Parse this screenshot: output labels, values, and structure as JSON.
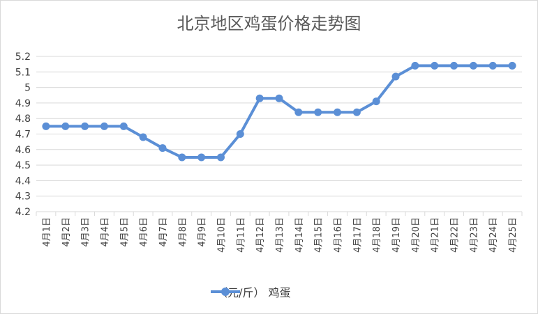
{
  "chart_data": {
    "type": "line",
    "title": "北京地区鸡蛋价格走势图",
    "categories": [
      "4月1日",
      "4月2日",
      "4月3日",
      "4月4日",
      "4月5日",
      "4月6日",
      "4月7日",
      "4月8日",
      "4月9日",
      "4月10日",
      "4月11日",
      "4月12日",
      "4月13日",
      "4月14日",
      "4月15日",
      "4月16日",
      "4月17日",
      "4月18日",
      "4月19日",
      "4月20日",
      "4月21日",
      "4月22日",
      "4月23日",
      "4月24日",
      "4月25日"
    ],
    "series": [
      {
        "name": "（元/斤） 鸡蛋",
        "color": "#5b8fd6",
        "values": [
          4.75,
          4.75,
          4.75,
          4.75,
          4.75,
          4.68,
          4.61,
          4.55,
          4.55,
          4.55,
          4.7,
          4.93,
          4.93,
          4.84,
          4.84,
          4.84,
          4.84,
          4.91,
          5.07,
          5.14,
          5.14,
          5.14,
          5.14,
          5.14,
          5.14
        ]
      }
    ],
    "yticks": [
      "4.2",
      "4.3",
      "4.4",
      "4.5",
      "4.6",
      "4.7",
      "4.8",
      "4.9",
      "5",
      "5.1",
      "5.2"
    ],
    "ylim": [
      4.2,
      5.2
    ],
    "grid": true,
    "legend_position": "bottom"
  }
}
